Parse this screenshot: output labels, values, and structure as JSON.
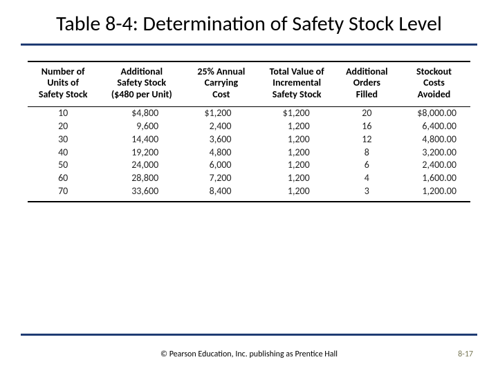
{
  "title": "Table 8-4:  Determination of Safety Stock Level",
  "table": {
    "columns": [
      "Number of\nUnits of\nSafety Stock",
      "Additional\nSafety Stock\n($480 per Unit)",
      "25% Annual\nCarrying\nCost",
      "Total Value of\nIncremental\nSafety Stock",
      "Additional\nOrders\nFilled",
      "Stockout\nCosts\nAvoided"
    ],
    "rows": [
      [
        "10",
        "$4,800",
        "$1,200",
        "$1,200",
        "20",
        "$8,000.00"
      ],
      [
        "20",
        "9,600",
        "2,400",
        "1,200",
        "16",
        "6,400.00"
      ],
      [
        "30",
        "14,400",
        "3,600",
        "1,200",
        "12",
        "4,800.00"
      ],
      [
        "40",
        "19,200",
        "4,800",
        "1,200",
        "8",
        "3,200.00"
      ],
      [
        "50",
        "24,000",
        "6,000",
        "1,200",
        "6",
        "2,400.00"
      ],
      [
        "60",
        "28,800",
        "7,200",
        "1,200",
        "4",
        "1,600.00"
      ],
      [
        "70",
        "33,600",
        "8,400",
        "1,200",
        "3",
        "1,200.00"
      ]
    ],
    "header_border_color": "#000000",
    "rule_color": "#1f3b73"
  },
  "footer_text": "© Pearson Education, Inc. publishing as Prentice Hall",
  "page_number": "8-17"
}
